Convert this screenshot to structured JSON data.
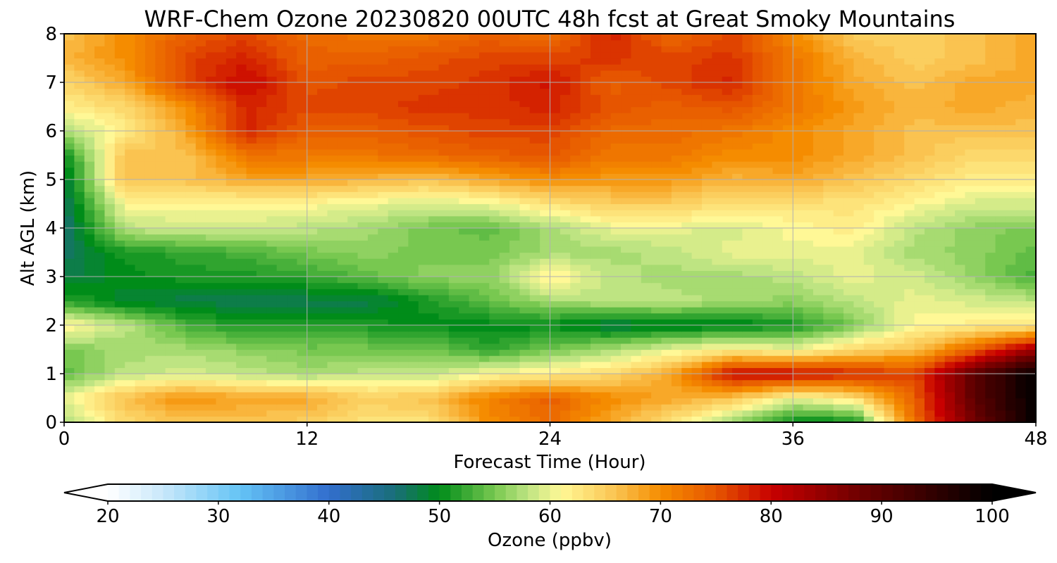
{
  "chart_data": {
    "type": "heatmap",
    "title": "WRF-Chem Ozone  20230820 00UTC 48h fcst at Great Smoky Mountains",
    "xlabel": "Forecast Time (Hour)",
    "ylabel": "Alt AGL (km)",
    "xlim": [
      0,
      48
    ],
    "ylim": [
      0,
      8
    ],
    "xticks": [
      "0",
      "12",
      "24",
      "36",
      "48"
    ],
    "yticks": [
      "0",
      "1",
      "2",
      "3",
      "4",
      "5",
      "6",
      "7",
      "8"
    ],
    "grid": true,
    "colorbar": {
      "label": "Ozone  (ppbv)",
      "ticks": [
        "20",
        "30",
        "40",
        "50",
        "60",
        "70",
        "80",
        "90",
        "100"
      ],
      "range": [
        20,
        100
      ],
      "extend": "both"
    },
    "x": [
      0,
      3,
      6,
      9,
      12,
      15,
      18,
      21,
      24,
      27,
      30,
      33,
      36,
      39,
      42,
      45,
      48
    ],
    "y": [
      0,
      0.5,
      1,
      1.5,
      2,
      2.5,
      3,
      3.5,
      4,
      4.5,
      5,
      5.5,
      6,
      6.5,
      7,
      7.5,
      8
    ],
    "z": [
      [
        57,
        64,
        66,
        66,
        65,
        63,
        63,
        70,
        73,
        68,
        63,
        56,
        50,
        50,
        73,
        88,
        100
      ],
      [
        60,
        66,
        70,
        68,
        68,
        65,
        66,
        71,
        74,
        70,
        68,
        66,
        60,
        63,
        74,
        90,
        100
      ],
      [
        54,
        58,
        59,
        58,
        57,
        58,
        58,
        61,
        62,
        64,
        68,
        80,
        80,
        78,
        76,
        90,
        100
      ],
      [
        55,
        57,
        57,
        56,
        55,
        55,
        55,
        52,
        55,
        57,
        60,
        62,
        60,
        64,
        66,
        74,
        84
      ],
      [
        62,
        58,
        53,
        51,
        51,
        51,
        50,
        50,
        50,
        48,
        49,
        49,
        51,
        55,
        61,
        62,
        62
      ],
      [
        52,
        49,
        48,
        48,
        48,
        48,
        51,
        54,
        57,
        58,
        58,
        57,
        56,
        58,
        60,
        59,
        58
      ],
      [
        48,
        50,
        51,
        51,
        52,
        54,
        56,
        56,
        62,
        58,
        57,
        57,
        58,
        60,
        59,
        56,
        53
      ],
      [
        47,
        51,
        52,
        53,
        55,
        56,
        55,
        55,
        57,
        57,
        58,
        60,
        60,
        60,
        57,
        56,
        54
      ],
      [
        46,
        58,
        59,
        59,
        58,
        57,
        55,
        54,
        57,
        60,
        60,
        59,
        61,
        62,
        58,
        56,
        55
      ],
      [
        47,
        61,
        61,
        61,
        61,
        60,
        59,
        60,
        63,
        65,
        65,
        63,
        63,
        63,
        61,
        59,
        59
      ],
      [
        48,
        66,
        66,
        68,
        68,
        67,
        66,
        68,
        70,
        69,
        69,
        67,
        68,
        66,
        64,
        62,
        62
      ],
      [
        50,
        66,
        66,
        72,
        72,
        72,
        73,
        74,
        75,
        72,
        72,
        70,
        70,
        68,
        66,
        64,
        64
      ],
      [
        57,
        62,
        68,
        78,
        74,
        74,
        75,
        76,
        76,
        73,
        73,
        72,
        70,
        68,
        66,
        66,
        66
      ],
      [
        62,
        64,
        70,
        78,
        76,
        76,
        77,
        77,
        78,
        75,
        74,
        75,
        72,
        69,
        67,
        68,
        67
      ],
      [
        64,
        68,
        76,
        80,
        75,
        76,
        76,
        77,
        79,
        74,
        76,
        78,
        72,
        68,
        66,
        68,
        68
      ],
      [
        67,
        70,
        76,
        78,
        74,
        74,
        75,
        76,
        76,
        77,
        76,
        77,
        72,
        67,
        65,
        66,
        68
      ],
      [
        66,
        70,
        74,
        76,
        73,
        72,
        72,
        74,
        72,
        78,
        73,
        76,
        70,
        65,
        65,
        66,
        68
      ]
    ]
  }
}
